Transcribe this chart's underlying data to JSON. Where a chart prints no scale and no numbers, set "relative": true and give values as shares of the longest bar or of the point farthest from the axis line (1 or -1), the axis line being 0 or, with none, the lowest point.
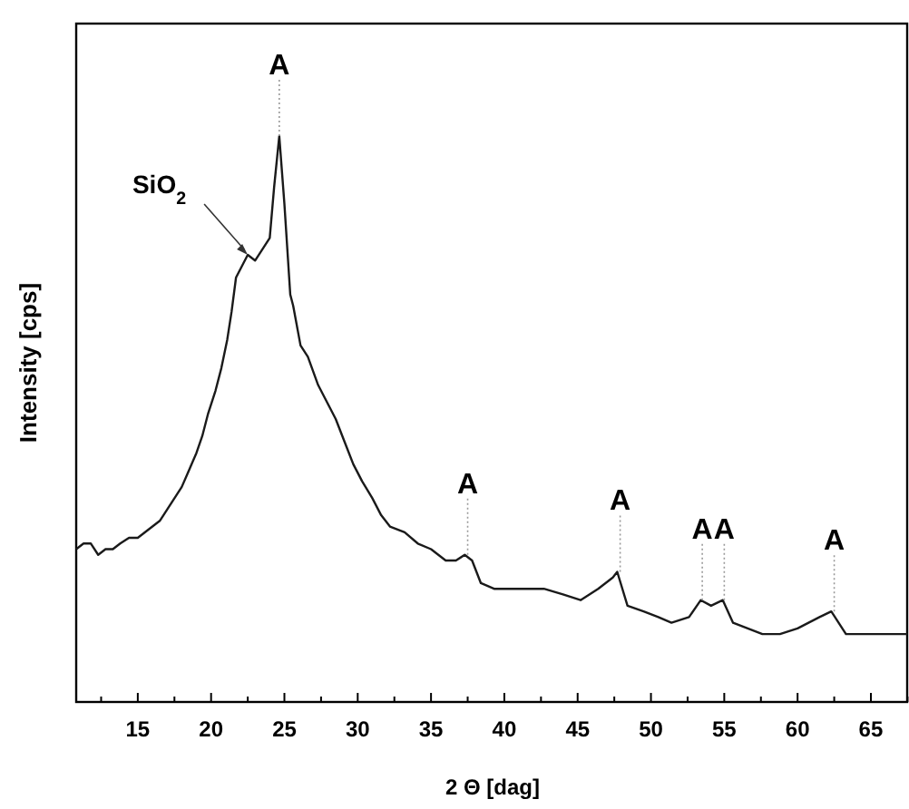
{
  "chart_data": {
    "type": "line",
    "relative": true,
    "xlabel": "2 Θ [dag]",
    "ylabel": "Intensity [cps]",
    "xlim": [
      10.8,
      67.6
    ],
    "xticks": [
      {
        "value": 12.5,
        "label": null
      },
      15,
      {
        "value": 17.5,
        "label": null
      },
      20,
      {
        "value": 22.5,
        "label": null
      },
      25,
      {
        "value": 27.5,
        "label": null
      },
      30,
      {
        "value": 32.5,
        "label": null
      },
      35,
      {
        "value": 37.5,
        "label": null
      },
      40,
      {
        "value": 42.5,
        "label": null
      },
      45,
      {
        "value": 47.5,
        "label": null
      },
      50,
      {
        "value": 52.5,
        "label": null
      },
      55,
      {
        "value": 57.5,
        "label": null
      },
      60,
      {
        "value": 62.5,
        "label": null
      },
      65,
      {
        "value": 67.5,
        "label": null
      }
    ],
    "series": [
      {
        "color": "#1a1a1a",
        "x": [
          10.8,
          11.3,
          11.8,
          12.3,
          12.8,
          13.3,
          13.8,
          14.4,
          15,
          15.5,
          16,
          16.5,
          17,
          17.5,
          18,
          18.5,
          19,
          19.4,
          19.8,
          20.3,
          20.7,
          21.1,
          21.4,
          21.7,
          22.1,
          22.5,
          23,
          23.5,
          24,
          24.3,
          24.65,
          25,
          25.4,
          25.6,
          26.1,
          26.6,
          27.3,
          27.9,
          28.5,
          29.1,
          29.7,
          30.3,
          31,
          31.6,
          32.2,
          33.2,
          34.1,
          35,
          36,
          36.7,
          37.3,
          37.8,
          38.4,
          39.3,
          40.2,
          41.4,
          42.7,
          44,
          45.2,
          46.4,
          47.4,
          47.7,
          48.4,
          49.5,
          50.5,
          51.4,
          52.6,
          53.4,
          54.1,
          54.9,
          55.6,
          56.6,
          57.6,
          58.8,
          60,
          61.5,
          62.3,
          63.3,
          64.2,
          65,
          66.2,
          67.5
        ],
        "values": [
          0.27,
          0.28,
          0.28,
          0.26,
          0.27,
          0.27,
          0.28,
          0.29,
          0.29,
          0.3,
          0.31,
          0.32,
          0.34,
          0.36,
          0.38,
          0.41,
          0.44,
          0.47,
          0.51,
          0.55,
          0.59,
          0.64,
          0.69,
          0.75,
          0.77,
          0.79,
          0.78,
          0.8,
          0.82,
          0.91,
          1.0,
          0.88,
          0.72,
          0.7,
          0.63,
          0.61,
          0.56,
          0.53,
          0.5,
          0.46,
          0.42,
          0.39,
          0.36,
          0.33,
          0.31,
          0.3,
          0.28,
          0.27,
          0.25,
          0.25,
          0.26,
          0.25,
          0.21,
          0.2,
          0.2,
          0.2,
          0.2,
          0.19,
          0.18,
          0.2,
          0.22,
          0.23,
          0.17,
          0.16,
          0.15,
          0.14,
          0.15,
          0.18,
          0.17,
          0.18,
          0.14,
          0.13,
          0.12,
          0.12,
          0.13,
          0.15,
          0.16,
          0.12,
          0.12,
          0.12,
          0.12,
          0.12
        ]
      }
    ],
    "annotations": [
      {
        "text": "A",
        "x": 24.65,
        "y": 1.0
      },
      {
        "text": "A",
        "x": 37.5,
        "y": 0.26
      },
      {
        "text": "A",
        "x": 47.9,
        "y": 0.23
      },
      {
        "text": "A",
        "x": 53.5,
        "y": 0.18
      },
      {
        "text": "A",
        "x": 55.0,
        "y": 0.18
      },
      {
        "text": "A",
        "x": 62.5,
        "y": 0.16
      },
      {
        "text": "SiO$_{2}$",
        "x": 22.5,
        "y": 0.79
      }
    ]
  }
}
